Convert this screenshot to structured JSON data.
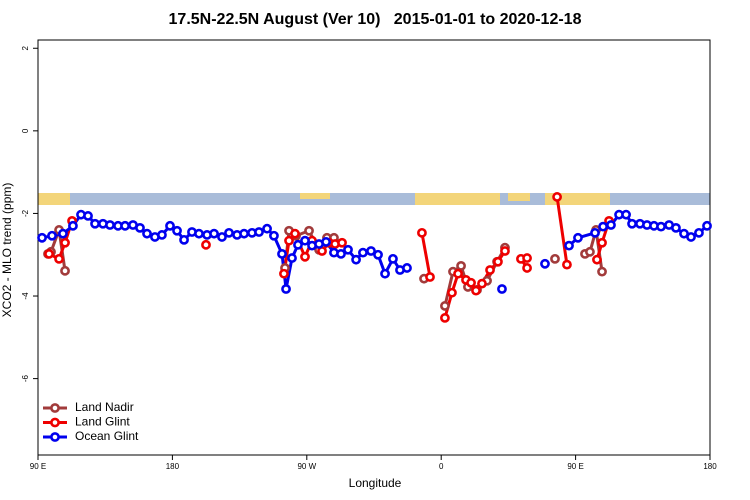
{
  "chart_data": {
    "type": "line",
    "title": "17.5N-22.5N August (Ver 10)   2015-01-01 to 2020-12-18",
    "x_label": "Longitude",
    "y_label": "XCO2 - MLO trend (ppm)",
    "xlim": [
      90,
      540
    ],
    "ylim": [
      -7.85,
      2.2
    ],
    "xticks": [
      {
        "value": 90,
        "label": "90 E"
      },
      {
        "value": 180,
        "label": "180"
      },
      {
        "value": 270,
        "label": "90 W"
      },
      {
        "value": 360,
        "label": "0"
      },
      {
        "value": 450,
        "label": "90 E"
      },
      {
        "value": 540,
        "label": "180"
      }
    ],
    "yticks": [
      2,
      0,
      -2,
      -4,
      -6
    ],
    "legend": "bottom-left",
    "series": [
      {
        "name": "Land Nadir",
        "color": "#a23b3b",
        "x": [
          96.7,
          98.7,
          104.1,
          108.1,
          null,
          255.4,
          258.1,
          262.8,
          271.5,
          278.2,
          283.5,
          288.2,
          null,
          348.5,
          null,
          362.5,
          367.9,
          373.3,
          377.9,
          384.0,
          390.7,
          397.4,
          402.7,
          null,
          436.2,
          null,
          456.3,
          459.6,
          463.7,
          467.7
        ],
        "values": [
          -2.98,
          -2.93,
          -2.4,
          -3.39,
          null,
          -3.32,
          -2.42,
          -2.54,
          -2.42,
          -2.88,
          -2.59,
          -2.59,
          null,
          -3.58,
          null,
          -4.24,
          -3.41,
          -3.27,
          -3.78,
          -3.85,
          -3.63,
          -3.17,
          -2.83,
          null,
          -3.1,
          null,
          -2.98,
          -2.93,
          -2.4,
          -3.41
        ]
      },
      {
        "name": "Land Glint",
        "color": "#ee0000",
        "x": [
          97.4,
          104.1,
          108.1,
          112.8,
          null,
          202.5,
          null,
          254.7,
          258.1,
          262.1,
          268.8,
          273.5,
          280.2,
          284.9,
          288.9,
          293.6,
          null,
          347.1,
          352.5,
          null,
          362.5,
          367.2,
          371.3,
          376.6,
          380.0,
          383.3,
          387.3,
          392.7,
          398.0,
          402.7,
          null,
          413.4,
          417.5,
          null,
          417.5,
          null,
          437.6,
          444.2,
          null,
          464.3,
          467.7,
          472.4
        ],
        "values": [
          -2.98,
          -3.1,
          -2.71,
          -2.18,
          null,
          -2.76,
          null,
          -3.46,
          -2.66,
          -2.49,
          -3.05,
          -2.66,
          -2.91,
          -2.71,
          -2.74,
          -2.71,
          null,
          -2.47,
          -3.54,
          null,
          -4.53,
          -3.92,
          -3.46,
          -3.61,
          -3.68,
          -3.87,
          -3.7,
          -3.37,
          -3.17,
          -2.91,
          null,
          -3.1,
          -3.32,
          null,
          -3.08,
          null,
          -1.6,
          -3.24,
          null,
          -3.12,
          -2.71,
          -2.18
        ]
      },
      {
        "name": "Ocean Glint",
        "color": "#0000ee",
        "x": [
          92.7,
          99.4,
          106.7,
          113.4,
          118.8,
          123.5,
          128.2,
          133.5,
          138.2,
          143.6,
          148.3,
          153.6,
          158.3,
          163.0,
          168.3,
          173.0,
          178.4,
          183.1,
          187.8,
          193.1,
          197.8,
          203.2,
          207.9,
          213.2,
          217.9,
          223.3,
          228.0,
          233.3,
          238.0,
          243.4,
          248.0,
          253.4,
          256.1,
          260.1,
          264.1,
          268.8,
          273.5,
          278.2,
          282.9,
          288.2,
          292.9,
          297.6,
          303.0,
          307.6,
          313.0,
          317.7,
          322.4,
          327.7,
          332.4,
          337.1,
          null,
          400.7,
          null,
          429.5,
          null,
          445.6,
          451.6,
          463.0,
          468.4,
          473.7,
          479.1,
          483.8,
          487.8,
          493.1,
          497.8,
          502.5,
          507.2,
          512.6,
          517.2,
          522.6,
          527.3,
          532.6,
          538.0
        ],
        "values": [
          -2.59,
          -2.54,
          -2.49,
          -2.3,
          -2.03,
          -2.06,
          -2.25,
          -2.25,
          -2.28,
          -2.3,
          -2.3,
          -2.28,
          -2.35,
          -2.49,
          -2.57,
          -2.52,
          -2.3,
          -2.42,
          -2.64,
          -2.45,
          -2.49,
          -2.52,
          -2.49,
          -2.57,
          -2.47,
          -2.52,
          -2.49,
          -2.47,
          -2.45,
          -2.37,
          -2.54,
          -2.98,
          -3.83,
          -3.08,
          -2.76,
          -2.66,
          -2.78,
          -2.74,
          -2.69,
          -2.95,
          -2.98,
          -2.88,
          -3.12,
          -2.95,
          -2.91,
          -3.0,
          -3.46,
          -3.1,
          -3.37,
          -3.32,
          null,
          -3.83,
          null,
          -3.22,
          null,
          -2.78,
          -2.59,
          -2.47,
          -2.32,
          -2.28,
          -2.03,
          -2.03,
          -2.25,
          -2.25,
          -2.28,
          -2.3,
          -2.32,
          -2.28,
          -2.35,
          -2.49,
          -2.57,
          -2.47,
          -2.3
        ]
      }
    ]
  }
}
